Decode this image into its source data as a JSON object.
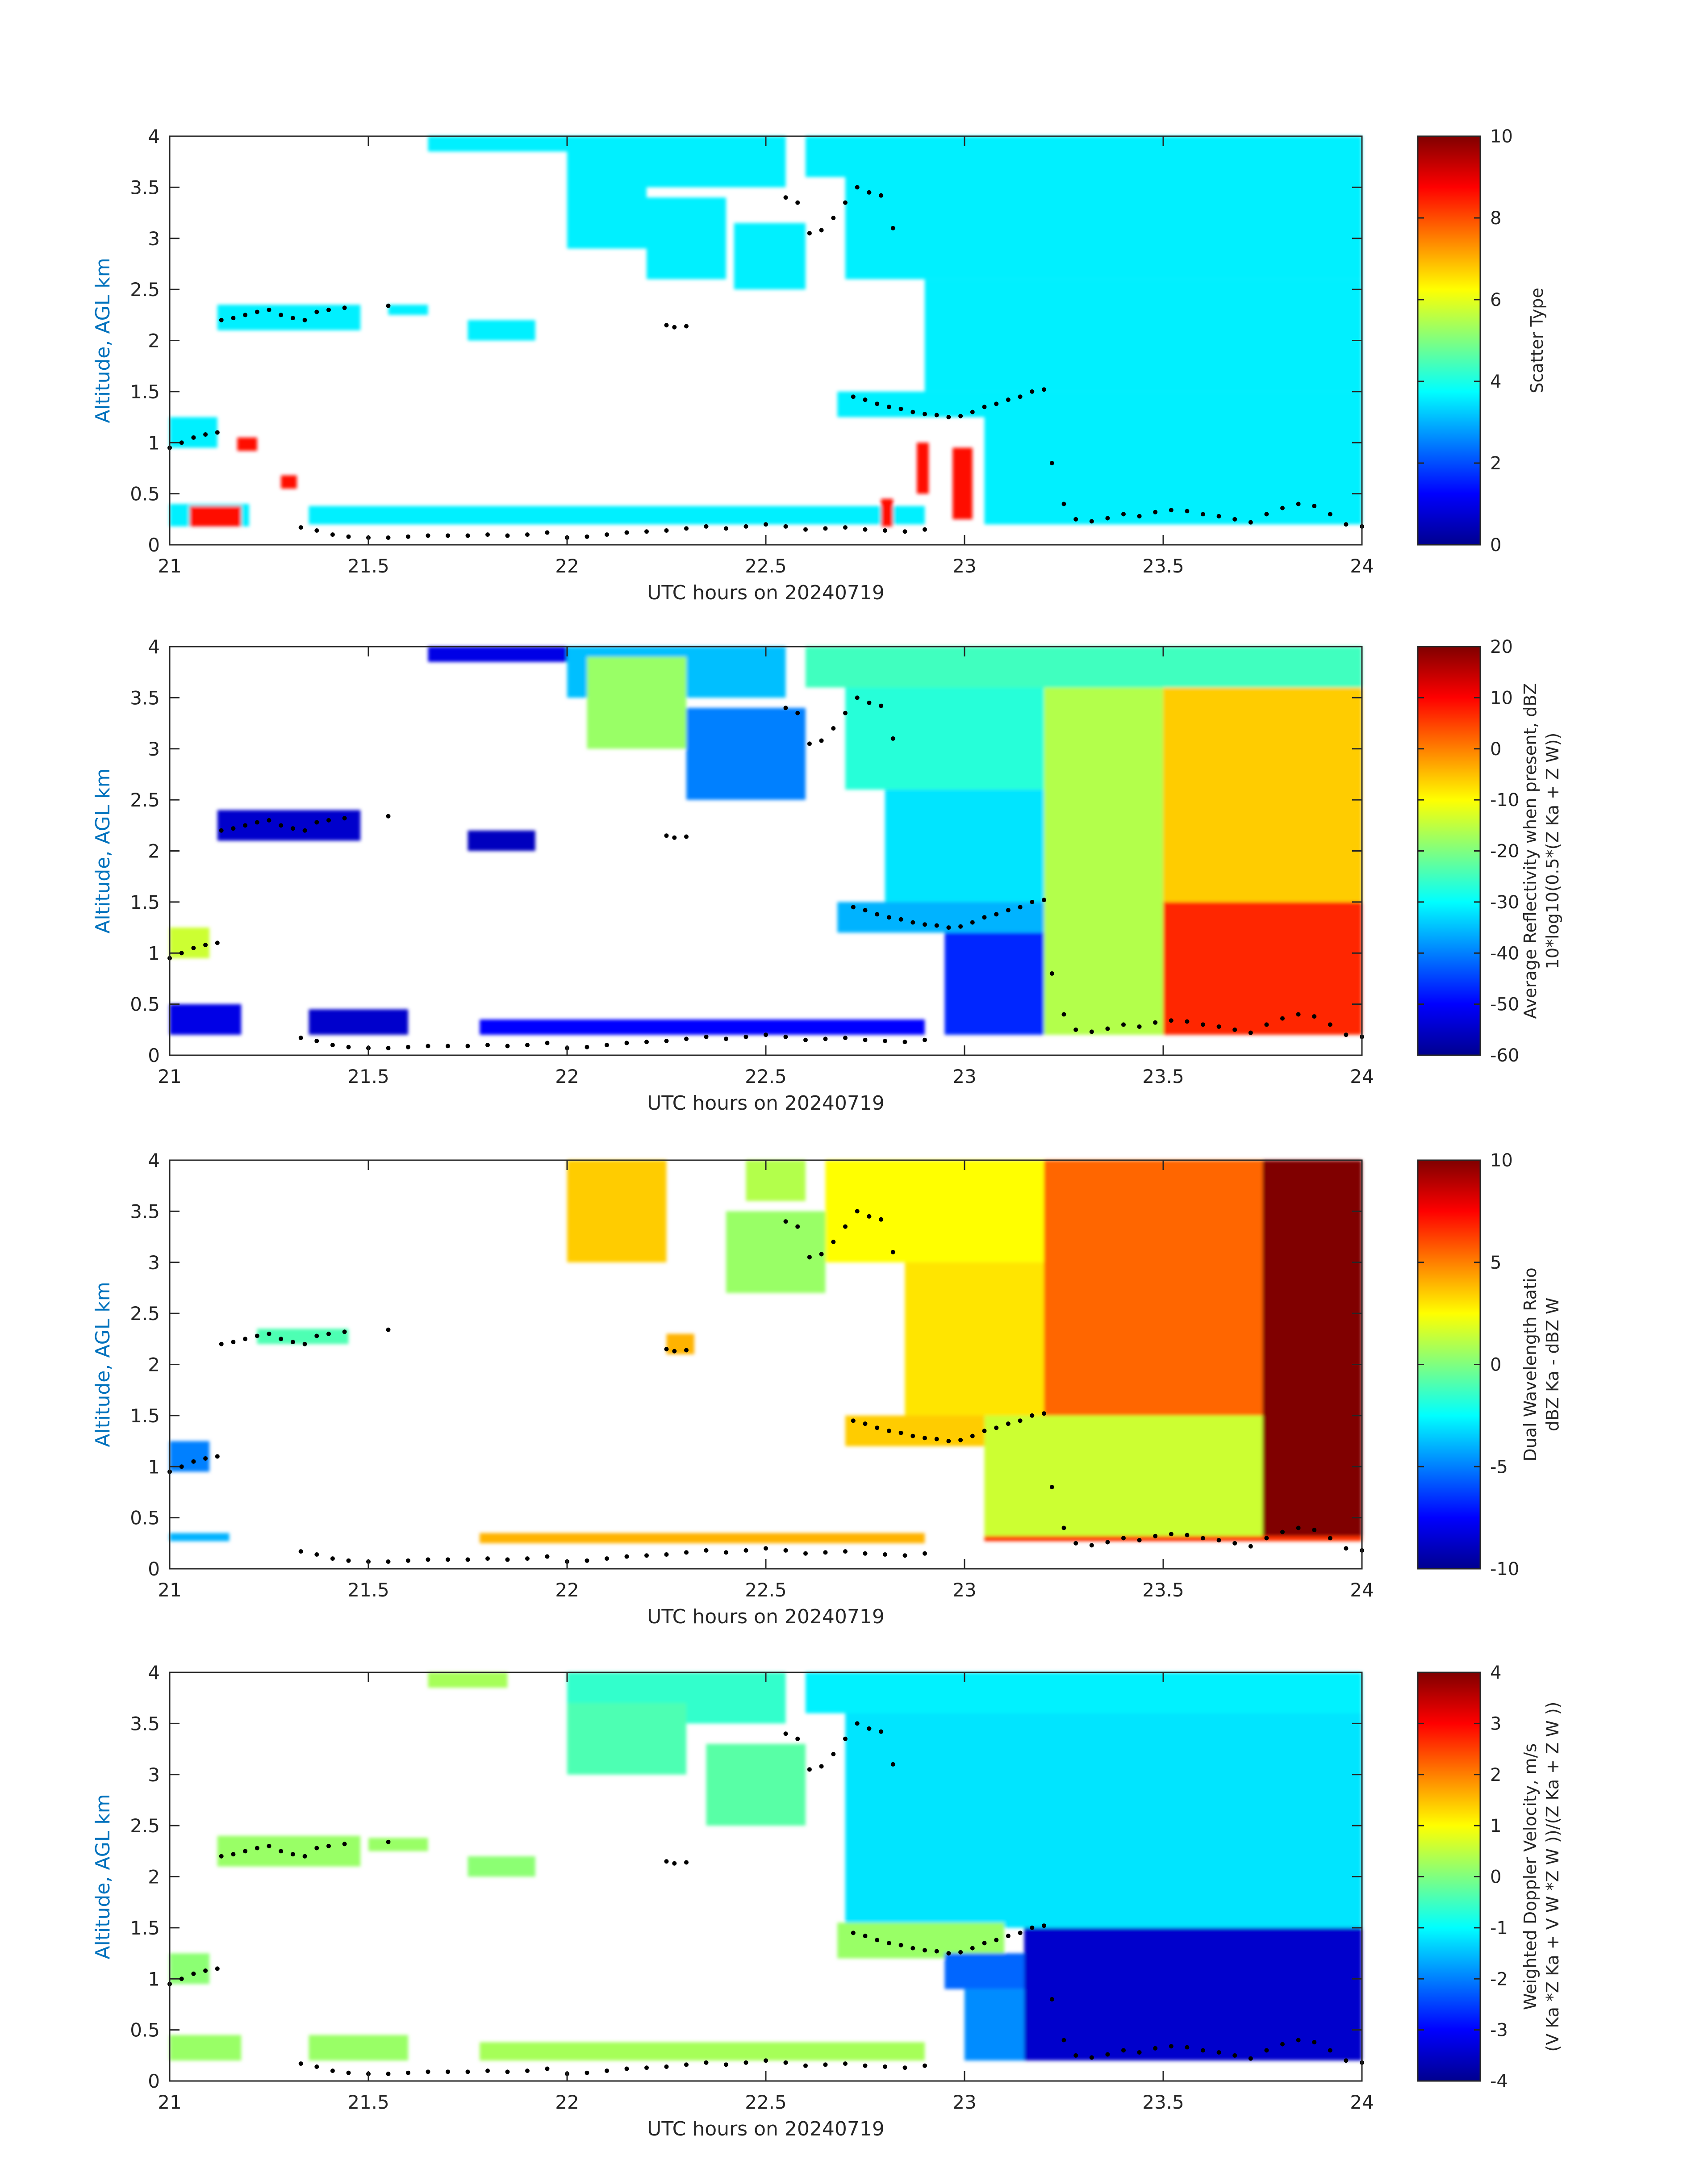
{
  "chart_data": [
    {
      "type": "heatmap",
      "xlabel": "UTC hours on 20240719",
      "ylabel": "Altitude, AGL km",
      "xlim": [
        21,
        24
      ],
      "ylim": [
        0,
        4
      ],
      "xticks": [
        "21",
        "21.5",
        "22",
        "22.5",
        "23",
        "23.5",
        "24"
      ],
      "yticks": [
        "0",
        "0.5",
        "1",
        "1.5",
        "2",
        "2.5",
        "3",
        "3.5",
        "4"
      ],
      "colorbar": {
        "label_lines": [
          "Scatter Type"
        ],
        "clim": [
          0,
          10
        ],
        "ticks": [
          "0",
          "2",
          "4",
          "6",
          "8",
          "10"
        ]
      },
      "colormap": "jet",
      "regions": [
        {
          "x0": 21.65,
          "x1": 22.05,
          "y0": 3.85,
          "y1": 4.0,
          "value": 3.6
        },
        {
          "x0": 22.0,
          "x1": 22.55,
          "y0": 3.5,
          "y1": 4.0,
          "value": 3.6
        },
        {
          "x0": 22.0,
          "x1": 22.2,
          "y0": 2.9,
          "y1": 3.6,
          "value": 3.6
        },
        {
          "x0": 22.2,
          "x1": 22.4,
          "y0": 2.6,
          "y1": 3.4,
          "value": 3.6
        },
        {
          "x0": 22.42,
          "x1": 22.6,
          "y0": 2.5,
          "y1": 3.15,
          "value": 3.6
        },
        {
          "x0": 22.6,
          "x1": 24.0,
          "y0": 3.6,
          "y1": 4.0,
          "value": 3.6
        },
        {
          "x0": 22.7,
          "x1": 24.0,
          "y0": 2.6,
          "y1": 3.6,
          "value": 3.6
        },
        {
          "x0": 22.9,
          "x1": 24.0,
          "y0": 1.5,
          "y1": 2.6,
          "value": 3.6
        },
        {
          "x0": 22.68,
          "x1": 23.2,
          "y0": 1.25,
          "y1": 1.5,
          "value": 3.6
        },
        {
          "x0": 23.05,
          "x1": 24.0,
          "y0": 0.2,
          "y1": 1.5,
          "value": 3.6
        },
        {
          "x0": 21.12,
          "x1": 21.48,
          "y0": 2.1,
          "y1": 2.35,
          "value": 3.6
        },
        {
          "x0": 21.55,
          "x1": 21.65,
          "y0": 2.25,
          "y1": 2.35,
          "value": 3.6
        },
        {
          "x0": 21.75,
          "x1": 21.92,
          "y0": 2.0,
          "y1": 2.2,
          "value": 3.6
        },
        {
          "x0": 21.0,
          "x1": 21.12,
          "y0": 0.95,
          "y1": 1.25,
          "value": 3.6
        },
        {
          "x0": 21.35,
          "x1": 22.9,
          "y0": 0.2,
          "y1": 0.38,
          "value": 3.6
        },
        {
          "x0": 21.0,
          "x1": 21.2,
          "y0": 0.18,
          "y1": 0.4,
          "value": 3.6
        },
        {
          "x0": 21.05,
          "x1": 21.18,
          "y0": 0.18,
          "y1": 0.38,
          "value": 8.6
        },
        {
          "x0": 21.17,
          "x1": 21.22,
          "y0": 0.92,
          "y1": 1.05,
          "value": 8.6
        },
        {
          "x0": 21.28,
          "x1": 21.32,
          "y0": 0.55,
          "y1": 0.68,
          "value": 8.6
        },
        {
          "x0": 22.79,
          "x1": 22.82,
          "y0": 0.18,
          "y1": 0.45,
          "value": 8.6
        },
        {
          "x0": 22.88,
          "x1": 22.91,
          "y0": 0.5,
          "y1": 1.0,
          "value": 8.6
        },
        {
          "x0": 22.97,
          "x1": 23.02,
          "y0": 0.25,
          "y1": 0.95,
          "value": 8.6
        }
      ]
    },
    {
      "type": "heatmap",
      "xlabel": "UTC hours on 20240719",
      "ylabel": "Altitude, AGL km",
      "xlim": [
        21,
        24
      ],
      "ylim": [
        0,
        4
      ],
      "xticks": [
        "21",
        "21.5",
        "22",
        "22.5",
        "23",
        "23.5",
        "24"
      ],
      "yticks": [
        "0",
        "0.5",
        "1",
        "1.5",
        "2",
        "2.5",
        "3",
        "3.5",
        "4"
      ],
      "colorbar": {
        "label_lines": [
          "Average Reflectivity when present, dBZ",
          "10*log10(0.5*(Z Ka + Z W))"
        ],
        "clim": [
          -60,
          20
        ],
        "ticks": [
          "20",
          "10",
          "0",
          "-10",
          "-20",
          "-30",
          "-40",
          "-50",
          "-60"
        ]
      },
      "colormap": "jet",
      "regions": [
        {
          "x0": 21.65,
          "x1": 22.05,
          "y0": 3.85,
          "y1": 4.0,
          "value": -52
        },
        {
          "x0": 22.0,
          "x1": 22.55,
          "y0": 3.5,
          "y1": 4.0,
          "value": -35
        },
        {
          "x0": 22.05,
          "x1": 22.3,
          "y0": 3.0,
          "y1": 3.9,
          "value": -18
        },
        {
          "x0": 22.3,
          "x1": 22.6,
          "y0": 2.5,
          "y1": 3.4,
          "value": -40
        },
        {
          "x0": 22.6,
          "x1": 24.0,
          "y0": 3.6,
          "y1": 4.0,
          "value": -25
        },
        {
          "x0": 22.7,
          "x1": 23.2,
          "y0": 2.6,
          "y1": 3.6,
          "value": -27
        },
        {
          "x0": 22.8,
          "x1": 23.2,
          "y0": 1.5,
          "y1": 2.6,
          "value": -32
        },
        {
          "x0": 22.68,
          "x1": 23.2,
          "y0": 1.2,
          "y1": 1.5,
          "value": -36
        },
        {
          "x0": 22.95,
          "x1": 23.2,
          "y0": 0.2,
          "y1": 1.2,
          "value": -47
        },
        {
          "x0": 23.2,
          "x1": 23.5,
          "y0": 0.2,
          "y1": 3.6,
          "value": -16
        },
        {
          "x0": 23.5,
          "x1": 24.0,
          "y0": 1.5,
          "y1": 3.6,
          "value": -6
        },
        {
          "x0": 23.5,
          "x1": 24.0,
          "y0": 0.2,
          "y1": 1.5,
          "value": 7
        },
        {
          "x0": 21.12,
          "x1": 21.48,
          "y0": 2.1,
          "y1": 2.4,
          "value": -54
        },
        {
          "x0": 21.75,
          "x1": 21.92,
          "y0": 2.0,
          "y1": 2.2,
          "value": -55
        },
        {
          "x0": 21.0,
          "x1": 21.1,
          "y0": 0.95,
          "y1": 1.25,
          "value": -14
        },
        {
          "x0": 21.0,
          "x1": 21.18,
          "y0": 0.2,
          "y1": 0.5,
          "value": -52
        },
        {
          "x0": 21.35,
          "x1": 21.6,
          "y0": 0.2,
          "y1": 0.45,
          "value": -54
        },
        {
          "x0": 21.78,
          "x1": 22.9,
          "y0": 0.2,
          "y1": 0.35,
          "value": -50
        }
      ]
    },
    {
      "type": "heatmap",
      "xlabel": "UTC hours on 20240719",
      "ylabel": "Altitude, AGL km",
      "xlim": [
        21,
        24
      ],
      "ylim": [
        0,
        4
      ],
      "xticks": [
        "21",
        "21.5",
        "22",
        "22.5",
        "23",
        "23.5",
        "24"
      ],
      "yticks": [
        "0",
        "0.5",
        "1",
        "1.5",
        "2",
        "2.5",
        "3",
        "3.5",
        "4"
      ],
      "colorbar": {
        "label_lines": [
          "Dual Wavelength Ratio",
          "dBZ Ka - dBZ W"
        ],
        "clim": [
          -10,
          10
        ],
        "ticks": [
          "10",
          "5",
          "0",
          "-5",
          "-10"
        ]
      },
      "colormap": "jet",
      "regions": [
        {
          "x0": 22.0,
          "x1": 22.25,
          "y0": 3.0,
          "y1": 4.0,
          "value": 3.5
        },
        {
          "x0": 22.45,
          "x1": 22.6,
          "y0": 3.6,
          "y1": 4.0,
          "value": 1.0
        },
        {
          "x0": 22.4,
          "x1": 22.65,
          "y0": 2.7,
          "y1": 3.5,
          "value": 0.5
        },
        {
          "x0": 22.65,
          "x1": 23.2,
          "y0": 3.0,
          "y1": 4.0,
          "value": 2.5
        },
        {
          "x0": 23.2,
          "x1": 23.75,
          "y0": 1.5,
          "y1": 4.0,
          "value": 5.5
        },
        {
          "x0": 22.85,
          "x1": 23.2,
          "y0": 1.5,
          "y1": 3.0,
          "value": 3.0
        },
        {
          "x0": 22.7,
          "x1": 23.05,
          "y0": 1.2,
          "y1": 1.5,
          "value": 3.5
        },
        {
          "x0": 23.05,
          "x1": 23.75,
          "y0": 0.3,
          "y1": 1.5,
          "value": 1.5
        },
        {
          "x0": 23.75,
          "x1": 24.0,
          "y0": 0.3,
          "y1": 4.0,
          "value": 10.0
        },
        {
          "x0": 21.22,
          "x1": 21.45,
          "y0": 2.2,
          "y1": 2.35,
          "value": -1.0
        },
        {
          "x0": 22.25,
          "x1": 22.32,
          "y0": 2.1,
          "y1": 2.3,
          "value": 4.0
        },
        {
          "x0": 21.0,
          "x1": 21.1,
          "y0": 0.95,
          "y1": 1.25,
          "value": -5.0
        },
        {
          "x0": 21.0,
          "x1": 21.15,
          "y0": 0.27,
          "y1": 0.35,
          "value": -4.0
        },
        {
          "x0": 21.78,
          "x1": 22.9,
          "y0": 0.25,
          "y1": 0.35,
          "value": 4.0
        },
        {
          "x0": 23.05,
          "x1": 24.0,
          "y0": 0.27,
          "y1": 0.32,
          "value": 6.5
        }
      ]
    },
    {
      "type": "heatmap",
      "xlabel": "UTC hours on 20240719",
      "ylabel": "Altitude, AGL km",
      "xlim": [
        21,
        24
      ],
      "ylim": [
        0,
        4
      ],
      "xticks": [
        "21",
        "21.5",
        "22",
        "22.5",
        "23",
        "23.5",
        "24"
      ],
      "yticks": [
        "0",
        "0.5",
        "1",
        "1.5",
        "2",
        "2.5",
        "3",
        "3.5",
        "4"
      ],
      "colorbar": {
        "label_lines": [
          "Weighted Doppler Velocity, m/s",
          "(V Ka *Z Ka + V W *Z W ))/(Z Ka + Z W ))"
        ],
        "clim": [
          -4,
          4
        ],
        "ticks": [
          "4",
          "3",
          "2",
          "1",
          "0",
          "-1",
          "-2",
          "-3",
          "-4"
        ]
      },
      "colormap": "jet",
      "regions": [
        {
          "x0": 21.65,
          "x1": 21.85,
          "y0": 3.85,
          "y1": 4.0,
          "value": 0.3
        },
        {
          "x0": 22.0,
          "x1": 22.55,
          "y0": 3.5,
          "y1": 4.0,
          "value": -0.6
        },
        {
          "x0": 22.0,
          "x1": 22.3,
          "y0": 3.0,
          "y1": 3.7,
          "value": -0.4
        },
        {
          "x0": 22.35,
          "x1": 22.6,
          "y0": 2.5,
          "y1": 3.3,
          "value": -0.3
        },
        {
          "x0": 22.6,
          "x1": 24.0,
          "y0": 3.6,
          "y1": 4.0,
          "value": -1.1
        },
        {
          "x0": 22.7,
          "x1": 24.0,
          "y0": 1.5,
          "y1": 3.6,
          "value": -1.2
        },
        {
          "x0": 22.68,
          "x1": 23.1,
          "y0": 1.2,
          "y1": 1.55,
          "value": 0.2
        },
        {
          "x0": 22.95,
          "x1": 23.15,
          "y0": 0.9,
          "y1": 1.25,
          "value": -2.2
        },
        {
          "x0": 23.0,
          "x1": 23.15,
          "y0": 0.2,
          "y1": 0.9,
          "value": -1.9
        },
        {
          "x0": 23.15,
          "x1": 24.0,
          "y0": 0.2,
          "y1": 1.5,
          "value": -3.4
        },
        {
          "x0": 21.12,
          "x1": 21.48,
          "y0": 2.1,
          "y1": 2.4,
          "value": 0.2
        },
        {
          "x0": 21.5,
          "x1": 21.65,
          "y0": 2.25,
          "y1": 2.38,
          "value": 0.2
        },
        {
          "x0": 21.75,
          "x1": 21.92,
          "y0": 2.0,
          "y1": 2.2,
          "value": 0.1
        },
        {
          "x0": 21.0,
          "x1": 21.1,
          "y0": 0.95,
          "y1": 1.25,
          "value": 0.1
        },
        {
          "x0": 21.0,
          "x1": 21.18,
          "y0": 0.2,
          "y1": 0.45,
          "value": 0.2
        },
        {
          "x0": 21.35,
          "x1": 21.6,
          "y0": 0.2,
          "y1": 0.45,
          "value": 0.2
        },
        {
          "x0": 21.78,
          "x1": 22.9,
          "y0": 0.2,
          "y1": 0.38,
          "value": 0.3
        }
      ]
    }
  ],
  "dot_trace": {
    "x": [
      21.0,
      21.03,
      21.06,
      21.09,
      21.12,
      21.33,
      21.37,
      21.41,
      21.45,
      21.5,
      21.55,
      21.6,
      21.65,
      21.7,
      21.75,
      21.8,
      21.85,
      21.9,
      21.95,
      22.0,
      22.05,
      22.1,
      22.15,
      22.2,
      22.25,
      22.3,
      22.35,
      22.4,
      22.45,
      22.5,
      22.55,
      22.6,
      22.65,
      22.7,
      22.75,
      22.8,
      22.85,
      22.9,
      21.13,
      21.16,
      21.19,
      21.22,
      21.25,
      21.28,
      21.31,
      21.34,
      21.37,
      21.4,
      21.44,
      21.55,
      22.25,
      22.27,
      22.3,
      22.55,
      22.58,
      22.61,
      22.64,
      22.67,
      22.7,
      22.73,
      22.76,
      22.79,
      22.82,
      22.72,
      22.75,
      22.78,
      22.81,
      22.84,
      22.87,
      22.9,
      22.93,
      22.96,
      22.99,
      23.02,
      23.05,
      23.08,
      23.11,
      23.14,
      23.17,
      23.2,
      23.22,
      23.25,
      23.28,
      23.32,
      23.36,
      23.4,
      23.44,
      23.48,
      23.52,
      23.56,
      23.6,
      23.64,
      23.68,
      23.72,
      23.76,
      23.8,
      23.84,
      23.88,
      23.92,
      23.96,
      24.0
    ],
    "y": [
      0.95,
      1.0,
      1.05,
      1.08,
      1.1,
      0.17,
      0.14,
      0.1,
      0.08,
      0.07,
      0.07,
      0.08,
      0.09,
      0.09,
      0.09,
      0.1,
      0.09,
      0.1,
      0.12,
      0.07,
      0.08,
      0.1,
      0.12,
      0.13,
      0.14,
      0.16,
      0.18,
      0.16,
      0.18,
      0.2,
      0.18,
      0.15,
      0.16,
      0.17,
      0.15,
      0.14,
      0.13,
      0.15,
      2.2,
      2.22,
      2.25,
      2.28,
      2.3,
      2.25,
      2.22,
      2.2,
      2.28,
      2.3,
      2.32,
      2.34,
      2.15,
      2.13,
      2.14,
      3.4,
      3.35,
      3.05,
      3.08,
      3.2,
      3.35,
      3.5,
      3.45,
      3.42,
      3.1,
      1.45,
      1.42,
      1.38,
      1.35,
      1.33,
      1.3,
      1.28,
      1.27,
      1.25,
      1.26,
      1.3,
      1.35,
      1.38,
      1.42,
      1.45,
      1.5,
      1.52,
      0.8,
      0.4,
      0.25,
      0.23,
      0.26,
      0.3,
      0.28,
      0.32,
      0.34,
      0.33,
      0.3,
      0.28,
      0.25,
      0.22,
      0.3,
      0.36,
      0.4,
      0.38,
      0.3,
      0.2,
      0.18
    ]
  }
}
